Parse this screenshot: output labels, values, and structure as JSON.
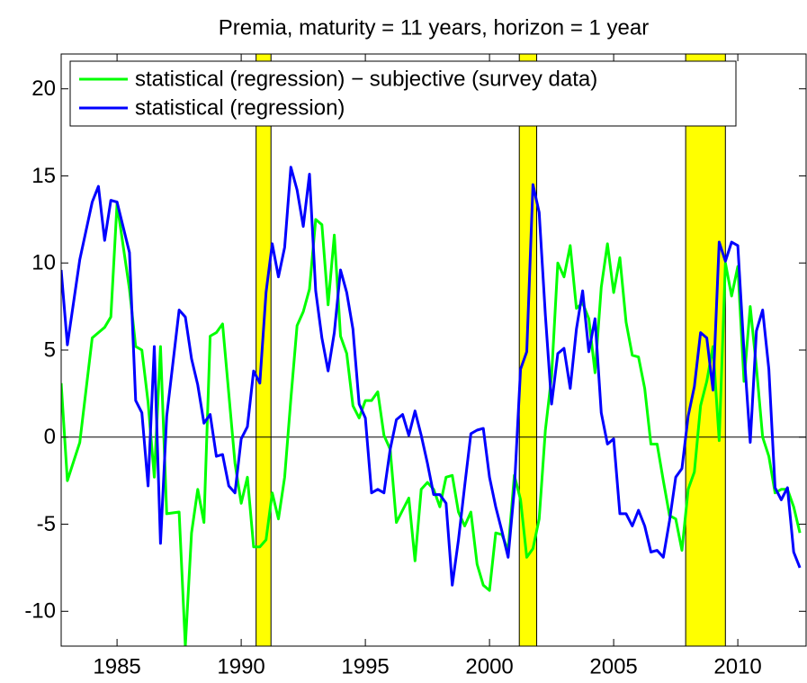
{
  "chart_data": {
    "type": "line",
    "title": "Premia, maturity = 11 years, horizon = 1 year",
    "x": [
      1982.75,
      1983,
      1983.5,
      1984,
      1984.25,
      1984.5,
      1984.75,
      1985,
      1985.5,
      1985.75,
      1986,
      1986.25,
      1986.5,
      1986.75,
      1987,
      1987.5,
      1987.75,
      1988,
      1988.25,
      1988.5,
      1988.75,
      1989,
      1989.25,
      1989.5,
      1989.75,
      1990,
      1990.25,
      1990.5,
      1990.75,
      1991,
      1991.25,
      1991.5,
      1991.75,
      1992,
      1992.25,
      1992.5,
      1992.75,
      1993,
      1993.25,
      1993.5,
      1993.75,
      1994,
      1994.25,
      1994.5,
      1994.75,
      1995,
      1995.25,
      1995.5,
      1995.75,
      1996,
      1996.25,
      1996.5,
      1996.75,
      1997,
      1997.25,
      1997.5,
      1997.75,
      1998,
      1998.25,
      1998.5,
      1998.75,
      1999,
      1999.25,
      1999.5,
      1999.75,
      2000,
      2000.25,
      2000.5,
      2000.75,
      2001,
      2001.25,
      2001.5,
      2001.75,
      2002,
      2002.25,
      2002.5,
      2002.75,
      2003,
      2003.25,
      2003.5,
      2003.75,
      2004,
      2004.25,
      2004.5,
      2004.75,
      2005,
      2005.25,
      2005.5,
      2005.75,
      2006,
      2006.25,
      2006.5,
      2006.75,
      2007,
      2007.25,
      2007.5,
      2007.75,
      2008,
      2008.25,
      2008.5,
      2008.75,
      2009,
      2009.25,
      2009.5,
      2009.75,
      2010,
      2010.25,
      2010.5,
      2010.75,
      2011,
      2011.25,
      2011.5,
      2011.75,
      2012,
      2012.25,
      2012.5
    ],
    "series": [
      {
        "name": "statistical (regression) − subjective (survey data)",
        "color": "#00ff00",
        "values": [
          3.1,
          -2.5,
          -0.3,
          5.7,
          6.0,
          6.3,
          6.9,
          13.4,
          8.5,
          5.2,
          5.0,
          2.0,
          -2.3,
          5.2,
          -4.4,
          -4.3,
          -12,
          -5.5,
          -3.0,
          -4.9,
          5.8,
          6.0,
          6.5,
          2.5,
          -1.5,
          -3.8,
          -2.3,
          -6.3,
          -6.3,
          -5.9,
          -3.2,
          -4.7,
          -2.3,
          2.2,
          6.4,
          7.2,
          8.5,
          12.5,
          12.2,
          7.6,
          11.6,
          5.8,
          4.8,
          1.8,
          1.1,
          2.1,
          2.1,
          2.6,
          0.1,
          -0.7,
          -4.9,
          -4.2,
          -3.5,
          -7.1,
          -3.0,
          -2.6,
          -3.0,
          -4.0,
          -2.3,
          -2.2,
          -4.3,
          -5.1,
          -4.3,
          -7.3,
          -8.5,
          -8.8,
          -5.5,
          -5.6,
          -6.5,
          -2.2,
          -3.6,
          -6.9,
          -6.4,
          -4.7,
          0.4,
          3.5,
          10.0,
          9.2,
          11.0,
          7.4,
          7.7,
          6.8,
          3.7,
          8.6,
          11.1,
          8.3,
          10.3,
          6.6,
          4.7,
          4.6,
          2.8,
          -0.4,
          -0.4,
          -2.5,
          -4.5,
          -4.7,
          -6.5,
          -3.0,
          -2.0,
          1.8,
          3.2,
          5.2,
          -0.2,
          10.0,
          8.1,
          9.8,
          3.2,
          7.5,
          4.0,
          0.0,
          -1.1,
          -3.2,
          -3.0,
          -3.0,
          -4.0,
          -5.5
        ]
      },
      {
        "name": "statistical (regression)",
        "color": "#0000ff",
        "values": [
          9.6,
          5.3,
          10.2,
          13.5,
          14.4,
          11.3,
          13.6,
          13.5,
          10.6,
          2.1,
          1.4,
          -2.8,
          5.2,
          -6.1,
          1.2,
          7.3,
          6.9,
          4.5,
          3.0,
          0.8,
          1.3,
          -1.1,
          -1.0,
          -2.8,
          -3.2,
          -0.1,
          0.6,
          3.8,
          3.1,
          8.3,
          11.1,
          9.2,
          10.9,
          15.5,
          14.2,
          12.1,
          15.1,
          8.4,
          5.7,
          3.8,
          6.0,
          9.6,
          8.3,
          6.2,
          1.9,
          1.1,
          -3.2,
          -3.0,
          -3.2,
          -0.7,
          1.0,
          1.3,
          0.1,
          1.5,
          0.1,
          -1.5,
          -3.3,
          -3.3,
          -3.8,
          -8.5,
          -5.9,
          -2.8,
          0.2,
          0.4,
          0.5,
          -2.3,
          -4.0,
          -5.4,
          -6.9,
          -3.0,
          3.9,
          4.9,
          14.5,
          12.9,
          7.0,
          1.9,
          4.8,
          5.1,
          2.8,
          6.2,
          8.4,
          4.9,
          6.8,
          1.4,
          -0.4,
          -0.1,
          -4.4,
          -4.4,
          -5.1,
          -4.2,
          -5.1,
          -6.6,
          -6.5,
          -6.9,
          -4.8,
          -2.3,
          -1.8,
          1.2,
          2.9,
          6.0,
          5.7,
          2.7,
          11.2,
          10.1,
          11.2,
          11.0,
          4.9,
          -0.3,
          6.1,
          7.3,
          3.9,
          -2.9,
          -3.6,
          -2.9,
          -6.6,
          -7.5
        ]
      }
    ],
    "shaded_regions": [
      [
        1990.6,
        1991.2
      ],
      [
        2001.2,
        2001.9
      ],
      [
        2007.9,
        2009.5
      ]
    ],
    "shade_color": "#ffff00",
    "reference_line": 0,
    "xlim": [
      1982.75,
      2012.75
    ],
    "xticks": [
      1985,
      1990,
      1995,
      2000,
      2005,
      2010
    ],
    "ylim": [
      -12,
      22
    ],
    "yticks": [
      -10,
      -5,
      0,
      5,
      10,
      15,
      20
    ],
    "grid": false,
    "legend": "upper left"
  }
}
